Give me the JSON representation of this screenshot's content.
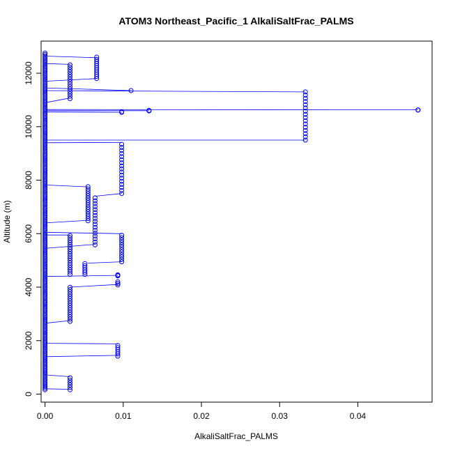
{
  "chart_data": {
    "type": "scatter",
    "title": "ATOM3 Northeast_Pacific_1 AlkaliSaltFrac_PALMS",
    "xlabel": "AlkaliSaltFrac_PALMS",
    "ylabel": "Altitude (m)",
    "xlim": [
      -0.0005,
      0.0495
    ],
    "ylim": [
      -300,
      13200
    ],
    "xticks": [
      0,
      0.01,
      0.02,
      0.03,
      0.04
    ],
    "xtick_labels": [
      "0.00",
      "0.01",
      "0.02",
      "0.03",
      "0.04"
    ],
    "yticks": [
      0,
      2000,
      4000,
      6000,
      8000,
      10000,
      12000
    ],
    "ytick_labels": [
      "0",
      "2000",
      "4000",
      "6000",
      "8000",
      "10000",
      "12000"
    ],
    "grid": false,
    "legend": "none",
    "series_color": "#0000ff",
    "line_segments": [
      [
        [
          0.0,
          12640
        ],
        [
          0.0066,
          12580
        ]
      ],
      [
        [
          0.0,
          12360
        ],
        [
          0.0032,
          12330
        ]
      ],
      [
        [
          0.0,
          11700
        ],
        [
          0.0066,
          11800
        ]
      ],
      [
        [
          0.0,
          11450
        ],
        [
          0.011,
          11350
        ]
      ],
      [
        [
          0.0,
          11350
        ],
        [
          0.0333,
          11300
        ]
      ],
      [
        [
          0.0,
          10900
        ],
        [
          0.0032,
          11070
        ]
      ],
      [
        [
          0.0,
          10640
        ],
        [
          0.0477,
          10630
        ]
      ],
      [
        [
          0.0,
          10600
        ],
        [
          0.0133,
          10600
        ]
      ],
      [
        [
          0.0,
          10550
        ],
        [
          0.0098,
          10540
        ]
      ],
      [
        [
          0.0,
          9500
        ],
        [
          0.0333,
          9500
        ]
      ],
      [
        [
          0.0,
          9400
        ],
        [
          0.0098,
          9410
        ]
      ],
      [
        [
          0.0,
          7820
        ],
        [
          0.0055,
          7750
        ]
      ],
      [
        [
          0.0064,
          7400
        ],
        [
          0.0098,
          7500
        ]
      ],
      [
        [
          0.0,
          6400
        ],
        [
          0.0055,
          6500
        ]
      ],
      [
        [
          0.0,
          6050
        ],
        [
          0.0098,
          6000
        ]
      ],
      [
        [
          0.0,
          5950
        ],
        [
          0.0032,
          5950
        ]
      ],
      [
        [
          0.0,
          5450
        ],
        [
          0.0064,
          5600
        ]
      ],
      [
        [
          0.0055,
          4900
        ],
        [
          0.0098,
          4950
        ]
      ],
      [
        [
          0.0,
          4400
        ],
        [
          0.0093,
          4440
        ]
      ],
      [
        [
          0.0032,
          4000
        ],
        [
          0.0093,
          4100
        ]
      ],
      [
        [
          0.0,
          2650
        ],
        [
          0.0032,
          2750
        ]
      ],
      [
        [
          0.0,
          1900
        ],
        [
          0.0093,
          1880
        ]
      ],
      [
        [
          0.0,
          1400
        ],
        [
          0.0093,
          1450
        ]
      ],
      [
        [
          0.0,
          720
        ],
        [
          0.0032,
          650
        ]
      ],
      [
        [
          0.0,
          200
        ],
        [
          0.0032,
          180
        ]
      ]
    ],
    "point_columns": [
      {
        "x": 0.0,
        "y_from": 160,
        "y_to": 12800,
        "step": 55
      },
      {
        "x": 0.0066,
        "y_from": 11800,
        "y_to": 12600,
        "step": 80
      },
      {
        "x": 0.0032,
        "y_from": 11050,
        "y_to": 12380,
        "step": 90
      },
      {
        "x": 0.0333,
        "y_from": 9500,
        "y_to": 11320,
        "step": 120
      },
      {
        "x": 0.0098,
        "y_from": 7500,
        "y_to": 9400,
        "step": 115
      },
      {
        "x": 0.0055,
        "y_from": 6480,
        "y_to": 7780,
        "step": 85
      },
      {
        "x": 0.0064,
        "y_from": 5580,
        "y_to": 7400,
        "step": 110
      },
      {
        "x": 0.0098,
        "y_from": 4950,
        "y_to": 6020,
        "step": 90
      },
      {
        "x": 0.0032,
        "y_from": 4480,
        "y_to": 5980,
        "step": 85
      },
      {
        "x": 0.0051,
        "y_from": 4480,
        "y_to": 4880,
        "step": 80
      },
      {
        "x": 0.0032,
        "y_from": 2720,
        "y_to": 4000,
        "step": 85
      },
      {
        "x": 0.0093,
        "y_from": 4080,
        "y_to": 4200,
        "step": 60
      },
      {
        "x": 0.0093,
        "y_from": 1420,
        "y_to": 1880,
        "step": 80
      },
      {
        "x": 0.0032,
        "y_from": 160,
        "y_to": 660,
        "step": 90
      }
    ],
    "points": [
      {
        "x": 0.0477,
        "y": 10630
      },
      {
        "x": 0.0477,
        "y": 10620
      },
      {
        "x": 0.0133,
        "y": 10610
      },
      {
        "x": 0.0133,
        "y": 10590
      },
      {
        "x": 0.0098,
        "y": 10540
      },
      {
        "x": 0.0098,
        "y": 10560
      },
      {
        "x": 0.011,
        "y": 11350
      },
      {
        "x": 0.0093,
        "y": 4420
      },
      {
        "x": 0.0093,
        "y": 4440
      },
      {
        "x": 0.0093,
        "y": 4460
      }
    ]
  }
}
